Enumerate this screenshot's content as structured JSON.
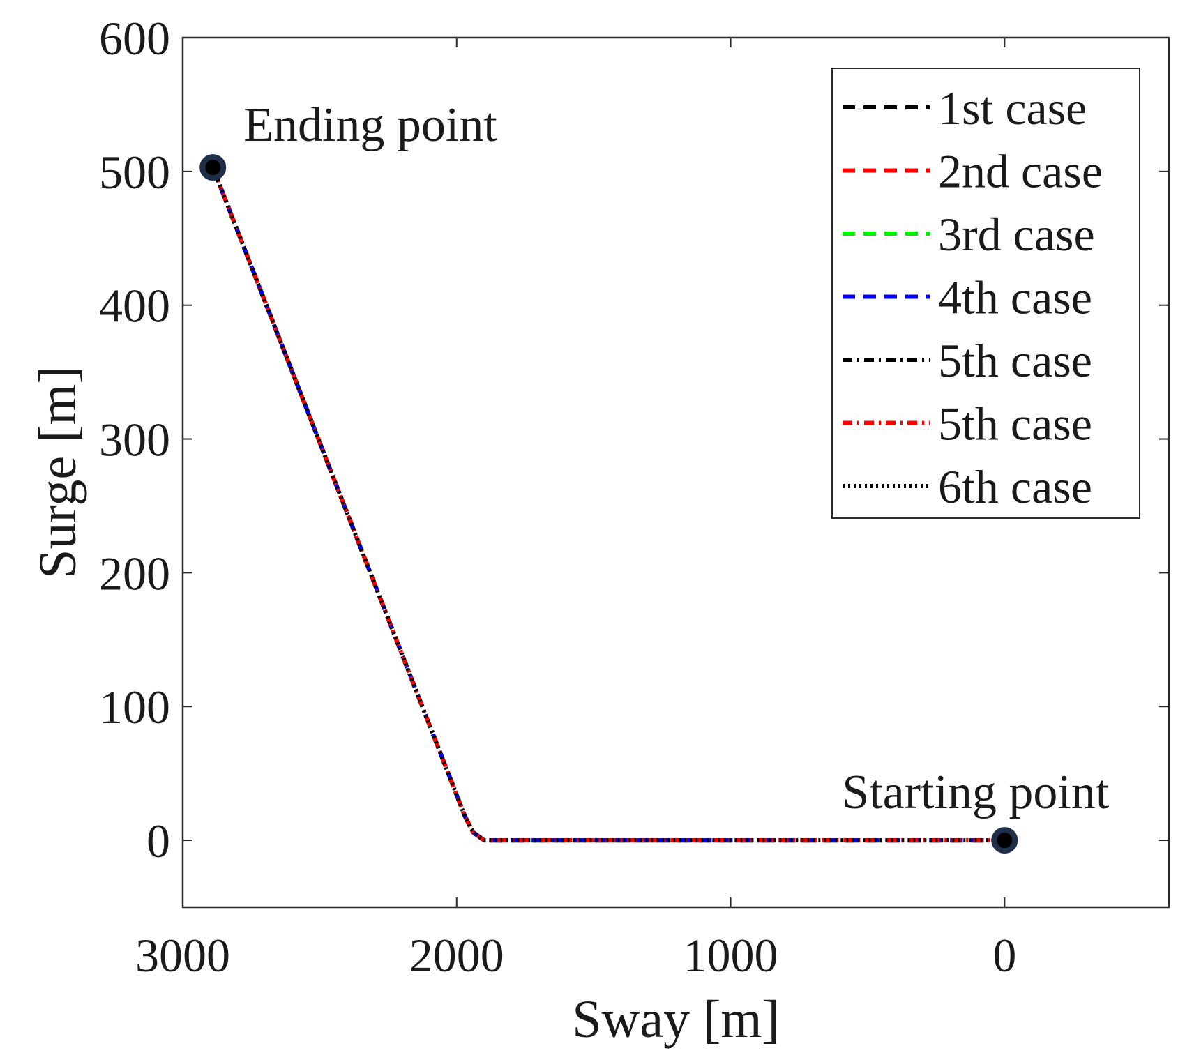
{
  "chart_data": {
    "type": "line",
    "xlabel": "Sway [m]",
    "ylabel": "Surge [m]",
    "xlim": [
      3000,
      -600
    ],
    "x_reversed": true,
    "ylim": [
      -50,
      600
    ],
    "xticks": [
      3000,
      2000,
      1000,
      0
    ],
    "xtick_labels": [
      "3000",
      "2000",
      "1000",
      "0"
    ],
    "yticks": [
      0,
      100,
      200,
      300,
      400,
      500,
      600
    ],
    "ytick_labels": [
      "0",
      "100",
      "200",
      "300",
      "400",
      "500",
      "600"
    ],
    "grid": false,
    "legend_position": "top-right",
    "x": [
      0,
      1900,
      1940,
      1970,
      2890
    ],
    "series": [
      {
        "name": "1st case",
        "y": [
          0,
          0,
          6,
          18,
          503
        ],
        "color": "#000000",
        "style": "dashed"
      },
      {
        "name": "2nd case",
        "y": [
          0,
          0,
          6,
          18,
          503
        ],
        "color": "#ff0000",
        "style": "dashed"
      },
      {
        "name": "3rd case",
        "y": [
          0,
          0,
          6,
          18,
          503
        ],
        "color": "#00ee00",
        "style": "dashed"
      },
      {
        "name": "4th case",
        "y": [
          0,
          0,
          6,
          18,
          503
        ],
        "color": "#0000ff",
        "style": "dashed"
      },
      {
        "name": "5th case",
        "y": [
          0,
          0,
          6,
          18,
          503
        ],
        "color": "#000000",
        "style": "dashdot"
      },
      {
        "name": "5th case",
        "y": [
          0,
          0,
          6,
          18,
          503
        ],
        "color": "#ff0000",
        "style": "dashdot"
      },
      {
        "name": "6th case",
        "y": [
          0,
          0,
          6,
          18,
          503
        ],
        "color": "#000000",
        "style": "dotted"
      }
    ],
    "markers": [
      {
        "label": "Ending point",
        "x": 2890,
        "y": 503,
        "color": "#000000",
        "edge_color": "#1f2f4a"
      },
      {
        "label": "Starting point",
        "x": 0,
        "y": 0,
        "color": "#000000",
        "edge_color": "#1f2f4a"
      }
    ]
  }
}
